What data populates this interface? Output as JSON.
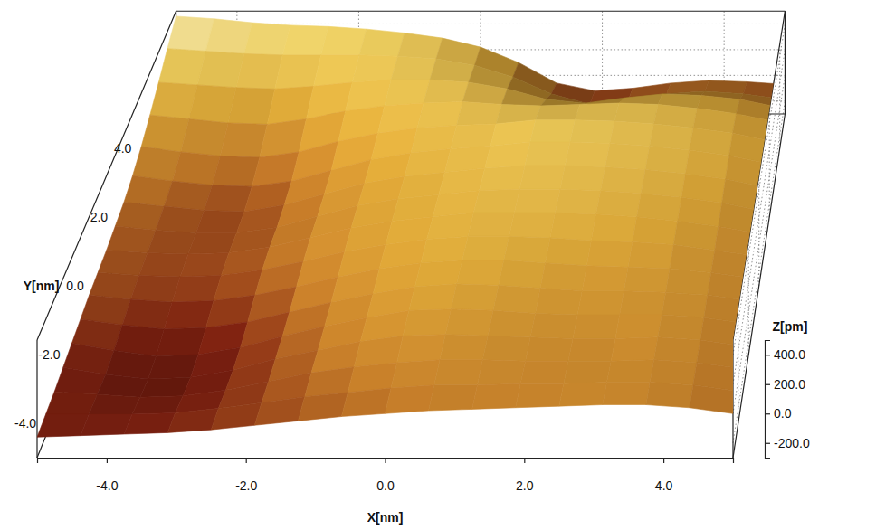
{
  "chart_data": {
    "type": "surface",
    "x": [
      -5,
      -4.375,
      -3.75,
      -3.125,
      -2.5,
      -1.875,
      -1.25,
      -0.625,
      0,
      0.625,
      1.25,
      1.875,
      2.5,
      3.125,
      3.75,
      4.375,
      5
    ],
    "y": [
      -5,
      -4.375,
      -3.75,
      -3.125,
      -2.5,
      -1.875,
      -1.25,
      -0.625,
      0,
      0.625,
      1.25,
      1.875,
      2.5,
      3.125,
      3.75,
      4.375,
      5
    ],
    "z": [
      [
        -160,
        -150,
        -140,
        -130,
        -110,
        -80,
        -50,
        -20,
        0,
        20,
        30,
        40,
        50,
        60,
        60,
        40,
        0
      ],
      [
        -150,
        -150,
        -150,
        -140,
        -110,
        -70,
        -30,
        0,
        30,
        50,
        50,
        60,
        60,
        70,
        70,
        50,
        10
      ],
      [
        -140,
        -160,
        -180,
        -170,
        -130,
        -70,
        -10,
        30,
        60,
        80,
        80,
        70,
        70,
        70,
        80,
        60,
        20
      ],
      [
        -120,
        -170,
        -200,
        -190,
        -140,
        -60,
        0,
        60,
        100,
        110,
        100,
        90,
        80,
        80,
        90,
        70,
        30
      ],
      [
        -100,
        -150,
        -190,
        -180,
        -130,
        -50,
        20,
        80,
        130,
        140,
        130,
        110,
        100,
        100,
        100,
        80,
        40
      ],
      [
        -80,
        -120,
        -150,
        -140,
        -100,
        -30,
        40,
        100,
        150,
        170,
        160,
        140,
        120,
        120,
        110,
        90,
        50
      ],
      [
        -60,
        -90,
        -110,
        -100,
        -60,
        0,
        70,
        130,
        170,
        190,
        190,
        170,
        150,
        140,
        130,
        100,
        60
      ],
      [
        -50,
        -70,
        -80,
        -70,
        -30,
        30,
        100,
        150,
        190,
        210,
        210,
        200,
        180,
        170,
        150,
        110,
        70
      ],
      [
        -40,
        -60,
        -70,
        -60,
        -20,
        50,
        120,
        170,
        200,
        230,
        230,
        230,
        220,
        200,
        170,
        130,
        80
      ],
      [
        -20,
        -50,
        -70,
        -70,
        -30,
        50,
        130,
        180,
        210,
        240,
        250,
        250,
        240,
        220,
        190,
        150,
        90
      ],
      [
        0,
        -30,
        -60,
        -70,
        -20,
        60,
        140,
        190,
        220,
        250,
        270,
        270,
        260,
        240,
        210,
        170,
        110
      ],
      [
        40,
        0,
        -30,
        -40,
        0,
        80,
        160,
        210,
        240,
        260,
        290,
        290,
        280,
        260,
        230,
        190,
        130
      ],
      [
        100,
        60,
        30,
        20,
        60,
        140,
        200,
        240,
        260,
        270,
        300,
        300,
        290,
        270,
        240,
        200,
        140
      ],
      [
        180,
        150,
        120,
        110,
        150,
        210,
        250,
        270,
        280,
        260,
        250,
        260,
        270,
        260,
        230,
        190,
        130
      ],
      [
        270,
        250,
        230,
        220,
        240,
        270,
        290,
        290,
        270,
        220,
        140,
        110,
        150,
        180,
        170,
        140,
        80
      ],
      [
        370,
        350,
        330,
        320,
        320,
        320,
        310,
        290,
        240,
        150,
        20,
        -60,
        -30,
        20,
        40,
        20,
        -20
      ],
      [
        460,
        440,
        410,
        390,
        380,
        360,
        330,
        290,
        220,
        100,
        -60,
        -120,
        -100,
        -60,
        -40,
        -50,
        -70
      ]
    ],
    "xlim": [
      -5,
      5
    ],
    "ylim": [
      -5,
      5
    ],
    "zlim": [
      -300,
      500
    ],
    "xticks": [
      {
        "value": -4,
        "label": "-4.0"
      },
      {
        "value": -2,
        "label": "-2.0"
      },
      {
        "value": 0,
        "label": "0.0"
      },
      {
        "value": 2,
        "label": "2.0"
      },
      {
        "value": 4,
        "label": "4.0"
      }
    ],
    "yticks": [
      {
        "value": -4,
        "label": "-4.0"
      },
      {
        "value": -2,
        "label": "-2.0"
      },
      {
        "value": 0,
        "label": "0.0"
      },
      {
        "value": 2,
        "label": "2.0"
      },
      {
        "value": 4,
        "label": "4.0"
      }
    ],
    "zticks": [
      {
        "value": -200,
        "label": "-200.0"
      },
      {
        "value": 0,
        "label": "0.0"
      },
      {
        "value": 200,
        "label": "200.0"
      },
      {
        "value": 400,
        "label": "400.0"
      }
    ],
    "x_label": "X[nm]",
    "y_label": "Y[nm]",
    "z_label": "Z[pm]",
    "grid": true
  }
}
